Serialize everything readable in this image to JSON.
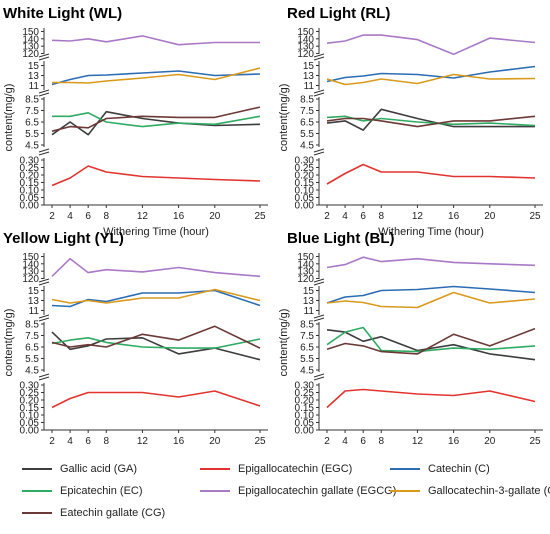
{
  "chart_data": [
    {
      "type": "line",
      "title": "White Light (WL)",
      "xlabel": "Withering Time (hour)",
      "ylabel": "content(mg/g)",
      "x": [
        2,
        4,
        6,
        8,
        12,
        16,
        20,
        25
      ],
      "series": [
        {
          "name": "Gallic acid (GA)",
          "values": [
            5.4,
            6.5,
            5.4,
            7.4,
            6.8,
            6.4,
            6.2,
            6.3
          ]
        },
        {
          "name": "Epigallocatechin (EGC)",
          "values": [
            0.13,
            0.18,
            0.26,
            0.22,
            0.19,
            0.18,
            0.17,
            0.16
          ]
        },
        {
          "name": "Catechin (C)",
          "values": [
            11.2,
            12.2,
            13.0,
            13.1,
            13.5,
            13.9,
            13.0,
            13.3
          ]
        },
        {
          "name": "Epicatechin (EC)",
          "values": [
            7.0,
            7.0,
            7.3,
            6.5,
            6.1,
            6.4,
            6.3,
            7.0
          ]
        },
        {
          "name": "Epigallocatechin gallate (EGCG)",
          "values": [
            138,
            137,
            140,
            136,
            144,
            132,
            135,
            135
          ]
        },
        {
          "name": "Gallocatechin-3-gallate (GCG)",
          "values": [
            11.6,
            11.6,
            11.5,
            11.9,
            12.5,
            13.2,
            12.2,
            14.5
          ]
        },
        {
          "name": "Eatechin gallate (CG)",
          "values": [
            5.7,
            6.1,
            6.0,
            6.8,
            7.0,
            6.9,
            6.9,
            7.8
          ]
        }
      ]
    },
    {
      "type": "line",
      "title": "Red Light (RL)",
      "xlabel": "Withering Time (hour)",
      "ylabel": "content(mg/g)",
      "x": [
        2,
        4,
        6,
        8,
        12,
        16,
        20,
        25
      ],
      "series": [
        {
          "name": "Gallic acid (GA)",
          "values": [
            6.4,
            6.6,
            5.8,
            7.6,
            6.8,
            6.1,
            6.1,
            6.1
          ]
        },
        {
          "name": "Epigallocatechin (EGC)",
          "values": [
            0.14,
            0.21,
            0.27,
            0.22,
            0.22,
            0.19,
            0.19,
            0.18
          ]
        },
        {
          "name": "Catechin (C)",
          "values": [
            11.8,
            12.6,
            12.9,
            13.4,
            13.2,
            12.5,
            13.7,
            14.8
          ]
        },
        {
          "name": "Epicatechin (EC)",
          "values": [
            6.9,
            7.0,
            6.6,
            6.8,
            6.5,
            6.3,
            6.4,
            6.2
          ]
        },
        {
          "name": "Epigallocatechin gallate (EGCG)",
          "values": [
            134,
            137,
            145,
            145,
            139,
            119,
            141,
            135
          ]
        },
        {
          "name": "Gallocatechin-3-gallate (GCG)",
          "values": [
            12.3,
            11.2,
            11.6,
            12.3,
            11.4,
            13.2,
            12.3,
            12.4
          ]
        },
        {
          "name": "Eatechin gallate (CG)",
          "values": [
            6.6,
            6.8,
            6.8,
            6.6,
            6.1,
            6.6,
            6.6,
            7.0
          ]
        }
      ]
    },
    {
      "type": "line",
      "title": "Yellow Light (YL)",
      "xlabel": "Withering Time (hour)",
      "ylabel": "content(mg/g)",
      "x": [
        2,
        4,
        6,
        8,
        12,
        16,
        20,
        25
      ],
      "series": [
        {
          "name": "Gallic acid (GA)",
          "values": [
            7.8,
            6.3,
            6.6,
            7.2,
            7.3,
            5.9,
            6.4,
            5.4
          ]
        },
        {
          "name": "Epigallocatechin (EGC)",
          "values": [
            0.15,
            0.21,
            0.25,
            0.25,
            0.25,
            0.22,
            0.26,
            0.16
          ]
        },
        {
          "name": "Catechin (C)",
          "values": [
            12.0,
            11.8,
            13.2,
            12.8,
            14.5,
            14.5,
            15.0,
            12.0
          ]
        },
        {
          "name": "Epicatechin (EC)",
          "values": [
            6.8,
            7.1,
            7.3,
            6.9,
            6.5,
            6.4,
            6.4,
            7.2
          ]
        },
        {
          "name": "Epigallocatechin gallate (EGCG)",
          "values": [
            123,
            147,
            128,
            132,
            129,
            135,
            128,
            123
          ]
        },
        {
          "name": "Gallocatechin-3-gallate (GCG)",
          "values": [
            13.2,
            12.5,
            13.0,
            12.5,
            13.5,
            13.5,
            15.2,
            13.0
          ]
        },
        {
          "name": "Eatechin gallate (CG)",
          "values": [
            6.9,
            6.5,
            6.7,
            6.5,
            7.6,
            7.1,
            8.3,
            6.4
          ]
        }
      ]
    },
    {
      "type": "line",
      "title": "Blue Light (BL)",
      "xlabel": "Withering Time (hour)",
      "ylabel": "content(mg/g)",
      "x": [
        2,
        4,
        6,
        8,
        12,
        16,
        20,
        25
      ],
      "series": [
        {
          "name": "Gallic acid (GA)",
          "values": [
            8.0,
            7.8,
            7.0,
            7.4,
            6.2,
            6.7,
            5.9,
            5.4
          ]
        },
        {
          "name": "Epigallocatechin (EGC)",
          "values": [
            0.15,
            0.26,
            0.27,
            0.26,
            0.24,
            0.23,
            0.26,
            0.19
          ]
        },
        {
          "name": "Catechin (C)",
          "values": [
            12.5,
            13.7,
            14.0,
            15.0,
            15.2,
            15.8,
            15.3,
            14.6
          ]
        },
        {
          "name": "Epicatechin (EC)",
          "values": [
            6.7,
            7.8,
            8.2,
            6.2,
            6.1,
            6.4,
            6.3,
            6.6
          ]
        },
        {
          "name": "Epigallocatechin gallate (EGCG)",
          "values": [
            135,
            139,
            149,
            143,
            147,
            142,
            140,
            138
          ]
        },
        {
          "name": "Gallocatechin-3-gallate (GCG)",
          "values": [
            12.5,
            12.9,
            12.6,
            11.8,
            11.6,
            14.6,
            12.5,
            13.3
          ]
        },
        {
          "name": "Eatechin gallate (CG)",
          "values": [
            6.3,
            6.8,
            6.6,
            6.1,
            5.9,
            7.6,
            6.6,
            8.1
          ]
        }
      ]
    }
  ],
  "colors": {
    "Gallic acid (GA)": "#3d3d3d",
    "Epigallocatechin (EGC)": "#e2342f",
    "Catechin (C)": "#2b6cb3",
    "Epicatechin (EC)": "#2fab62",
    "Epigallocatechin gallate (EGCG)": "#a979c8",
    "Gallocatechin-3-gallate (GCG)": "#d99a1c",
    "Eatechin gallate (CG)": "#6b3a36"
  },
  "segments": [
    {
      "min": 0,
      "max": 0.3,
      "ticks": [
        0.0,
        0.05,
        0.1,
        0.15,
        0.2,
        0.25,
        0.3
      ],
      "labels": [
        "0.00",
        "0.05",
        "0.10",
        "0.15",
        "0.20",
        "0.25",
        "0.30"
      ]
    },
    {
      "min": 4.5,
      "max": 8.5,
      "ticks": [
        4.5,
        5.5,
        6.5,
        7.5,
        8.5
      ],
      "labels": [
        "4.5",
        "5.5",
        "6.5",
        "7.5",
        "8.5"
      ]
    },
    {
      "min": 10.5,
      "max": 15.5,
      "ticks": [
        11,
        13,
        15
      ],
      "labels": [
        "11",
        "13",
        "15"
      ]
    },
    {
      "min": 118,
      "max": 152,
      "ticks": [
        120,
        130,
        140,
        150
      ],
      "labels": [
        "120",
        "130",
        "140",
        "150"
      ]
    }
  ],
  "x_tick_labels": [
    "2",
    "4",
    "6",
    "8",
    "12",
    "16",
    "20",
    "25"
  ],
  "legend": [
    "Gallic acid (GA)",
    "Epigallocatechin (EGC)",
    "Catechin (C)",
    "Epicatechin (EC)",
    "Epigallocatechin gallate (EGCG)",
    "Gallocatechin-3-gallate (GCG)",
    "Eatechin gallate (CG)"
  ]
}
